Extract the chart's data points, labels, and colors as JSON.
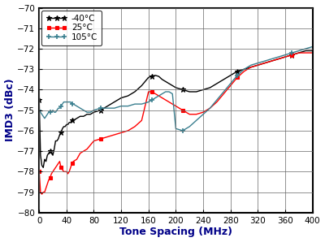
{
  "xlabel": "Tone Spacing (MHz)",
  "ylabel": "IMD3 (dBc)",
  "xlim": [
    0,
    400
  ],
  "ylim": [
    -80,
    -70
  ],
  "yticks": [
    -80,
    -79,
    -78,
    -77,
    -76,
    -75,
    -74,
    -73,
    -72,
    -71,
    -70
  ],
  "xticks": [
    0,
    40,
    80,
    120,
    160,
    200,
    240,
    280,
    320,
    360,
    400
  ],
  "bg_color": "#ffffff",
  "series": [
    {
      "label": "-40°C",
      "color": "#000000",
      "marker": "*",
      "x": [
        0,
        2,
        4,
        6,
        8,
        10,
        12,
        14,
        16,
        18,
        20,
        22,
        24,
        26,
        28,
        30,
        32,
        34,
        36,
        38,
        40,
        42,
        44,
        46,
        48,
        50,
        55,
        60,
        65,
        70,
        75,
        80,
        90,
        100,
        110,
        120,
        130,
        140,
        150,
        160,
        165,
        170,
        175,
        180,
        185,
        190,
        195,
        200,
        210,
        220,
        230,
        240,
        250,
        260,
        270,
        280,
        290,
        300,
        310,
        320,
        330,
        340,
        350,
        360,
        370,
        380,
        390,
        400
      ],
      "y": [
        -74.5,
        -77.2,
        -77.7,
        -77.8,
        -77.4,
        -77.5,
        -77.2,
        -77.1,
        -77.0,
        -77.1,
        -77.2,
        -76.9,
        -76.5,
        -76.5,
        -76.4,
        -76.2,
        -76.1,
        -75.9,
        -75.8,
        -75.8,
        -75.7,
        -75.7,
        -75.6,
        -75.6,
        -75.5,
        -75.5,
        -75.4,
        -75.3,
        -75.3,
        -75.2,
        -75.2,
        -75.1,
        -75.0,
        -74.8,
        -74.6,
        -74.4,
        -74.3,
        -74.1,
        -73.8,
        -73.4,
        -73.35,
        -73.3,
        -73.35,
        -73.5,
        -73.6,
        -73.7,
        -73.8,
        -73.9,
        -74.0,
        -74.1,
        -74.1,
        -74.0,
        -73.9,
        -73.7,
        -73.5,
        -73.3,
        -73.1,
        -73.0,
        -72.9,
        -72.8,
        -72.7,
        -72.6,
        -72.5,
        -72.4,
        -72.3,
        -72.2,
        -72.1,
        -72.1
      ]
    },
    {
      "label": "25°C",
      "color": "#ff0000",
      "marker": "s",
      "x": [
        0,
        2,
        4,
        6,
        8,
        10,
        12,
        14,
        16,
        18,
        20,
        22,
        24,
        26,
        28,
        30,
        32,
        34,
        36,
        38,
        40,
        42,
        44,
        46,
        48,
        50,
        55,
        60,
        65,
        70,
        75,
        80,
        90,
        100,
        110,
        120,
        130,
        140,
        150,
        160,
        165,
        170,
        175,
        180,
        185,
        190,
        195,
        200,
        210,
        220,
        230,
        240,
        250,
        260,
        270,
        280,
        290,
        300,
        310,
        320,
        330,
        340,
        350,
        360,
        370,
        380,
        390,
        400
      ],
      "y": [
        -78.0,
        -79.0,
        -79.1,
        -79.0,
        -79.0,
        -78.8,
        -78.6,
        -78.4,
        -78.3,
        -78.1,
        -78.0,
        -77.9,
        -77.8,
        -77.7,
        -77.6,
        -77.5,
        -77.8,
        -77.9,
        -78.0,
        -78.0,
        -78.0,
        -78.1,
        -78.0,
        -77.8,
        -77.6,
        -77.5,
        -77.4,
        -77.1,
        -77.0,
        -76.9,
        -76.7,
        -76.5,
        -76.4,
        -76.3,
        -76.2,
        -76.1,
        -76.0,
        -75.8,
        -75.5,
        -74.1,
        -74.1,
        -74.2,
        -74.3,
        -74.4,
        -74.5,
        -74.6,
        -74.7,
        -74.8,
        -75.0,
        -75.2,
        -75.2,
        -75.1,
        -74.9,
        -74.6,
        -74.2,
        -73.8,
        -73.4,
        -73.1,
        -72.9,
        -72.8,
        -72.7,
        -72.6,
        -72.5,
        -72.4,
        -72.3,
        -72.2,
        -72.2,
        -72.2
      ]
    },
    {
      "label": "105°C",
      "color": "#3a7f8f",
      "marker": "+",
      "x": [
        0,
        2,
        4,
        6,
        8,
        10,
        12,
        14,
        16,
        18,
        20,
        22,
        24,
        26,
        28,
        30,
        32,
        34,
        36,
        38,
        40,
        42,
        44,
        46,
        48,
        50,
        55,
        60,
        65,
        70,
        75,
        80,
        90,
        100,
        110,
        120,
        130,
        140,
        150,
        160,
        165,
        170,
        175,
        180,
        185,
        190,
        195,
        200,
        210,
        220,
        230,
        240,
        250,
        260,
        270,
        280,
        290,
        300,
        310,
        320,
        330,
        340,
        350,
        360,
        370,
        380,
        390,
        400
      ],
      "y": [
        -75.0,
        -75.1,
        -75.2,
        -75.3,
        -75.4,
        -75.3,
        -75.2,
        -75.1,
        -75.1,
        -75.1,
        -75.0,
        -75.1,
        -75.1,
        -75.0,
        -74.9,
        -74.9,
        -74.8,
        -74.7,
        -74.6,
        -74.6,
        -74.6,
        -74.6,
        -74.6,
        -74.6,
        -74.7,
        -74.7,
        -74.8,
        -74.9,
        -75.0,
        -75.1,
        -75.1,
        -75.0,
        -74.9,
        -74.9,
        -74.9,
        -74.8,
        -74.8,
        -74.7,
        -74.7,
        -74.6,
        -74.5,
        -74.4,
        -74.3,
        -74.2,
        -74.1,
        -74.1,
        -74.2,
        -75.9,
        -76.0,
        -75.8,
        -75.5,
        -75.2,
        -74.9,
        -74.5,
        -74.1,
        -73.7,
        -73.3,
        -73.0,
        -72.8,
        -72.7,
        -72.6,
        -72.5,
        -72.4,
        -72.3,
        -72.2,
        -72.1,
        -72.0,
        -71.9
      ]
    }
  ]
}
